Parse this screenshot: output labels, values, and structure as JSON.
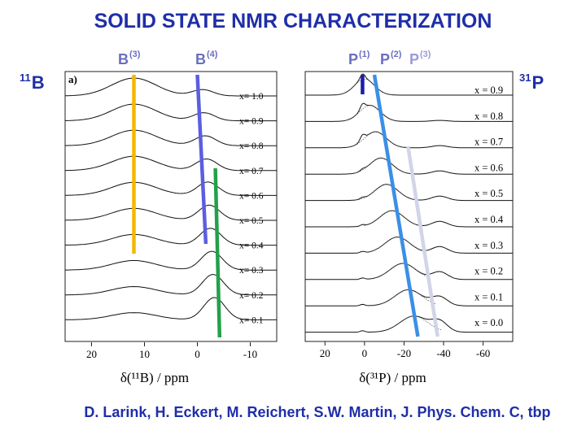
{
  "title": "SOLID STATE NMR CHARACTERIZATION",
  "site_labels": {
    "b3": {
      "base": "B",
      "sup": "(3)",
      "color": "#6a6fbf"
    },
    "b4": {
      "base": "B",
      "sup": "(4)",
      "color": "#6a6fbf"
    },
    "p1": {
      "base": "P",
      "sup": "(1)",
      "color": "#6a6fbf"
    },
    "p2": {
      "base": "P",
      "sup": "(2)",
      "color": "#6a6fbf"
    },
    "p3": {
      "base": "P",
      "sup": "(3)",
      "color": "#9a9bd6"
    }
  },
  "nucleus_labels": {
    "b11": {
      "mass": "11",
      "symbol": "B"
    },
    "p31": {
      "mass": "31",
      "symbol": "P"
    }
  },
  "citation": "D. Larink, H. Eckert, M. Reichert, S.W. Martin, J. Phys. Chem. C, tbp",
  "chart_data": [
    {
      "type": "line",
      "panel_label": "a)",
      "xlabel": "δ(¹¹B) / ppm",
      "x_ticks": [
        20,
        10,
        0,
        -10
      ],
      "xlim": [
        25,
        -15
      ],
      "series": [
        "x= 1.0",
        "x= 0.9",
        "x= 0.8",
        "x= 0.7",
        "x= 0.6",
        "x= 0.5",
        "x= 0.4",
        "x= 0.3",
        "x= 0.2",
        "x= 0.1"
      ],
      "guide_lines": [
        {
          "site": "B(3)",
          "color": "#f2b800",
          "ppm_top": 12,
          "ppm_bottom": 12
        },
        {
          "site": "B(4)",
          "color": "#5b5ee0",
          "ppm_top": 0,
          "ppm_bottom": -1.6
        },
        {
          "site": "B(4)",
          "color": "#21a14a",
          "ppm_top": -3.4,
          "ppm_bottom": -4.2
        }
      ]
    },
    {
      "type": "line",
      "panel_label": "",
      "xlabel": "δ(³¹P) / ppm",
      "x_ticks": [
        20,
        0,
        -20,
        -40,
        -60
      ],
      "xlim": [
        30,
        -75
      ],
      "series": [
        "x = 0.9",
        "x = 0.8",
        "x = 0.7",
        "x = 0.6",
        "x = 0.5",
        "x = 0.4",
        "x = 0.3",
        "x = 0.2",
        "x = 0.1",
        "x = 0.0"
      ],
      "guide_lines": [
        {
          "site": "P(1)",
          "color": "#1c1cb0",
          "ppm_top": 1,
          "ppm_bottom": 1
        },
        {
          "site": "P(2)",
          "color": "#3b8fe6",
          "ppm_top": -5,
          "ppm_bottom": -27
        },
        {
          "site": "P(3)",
          "color": "#d2d4e8",
          "ppm_top": -22,
          "ppm_bottom": -37
        }
      ]
    }
  ]
}
